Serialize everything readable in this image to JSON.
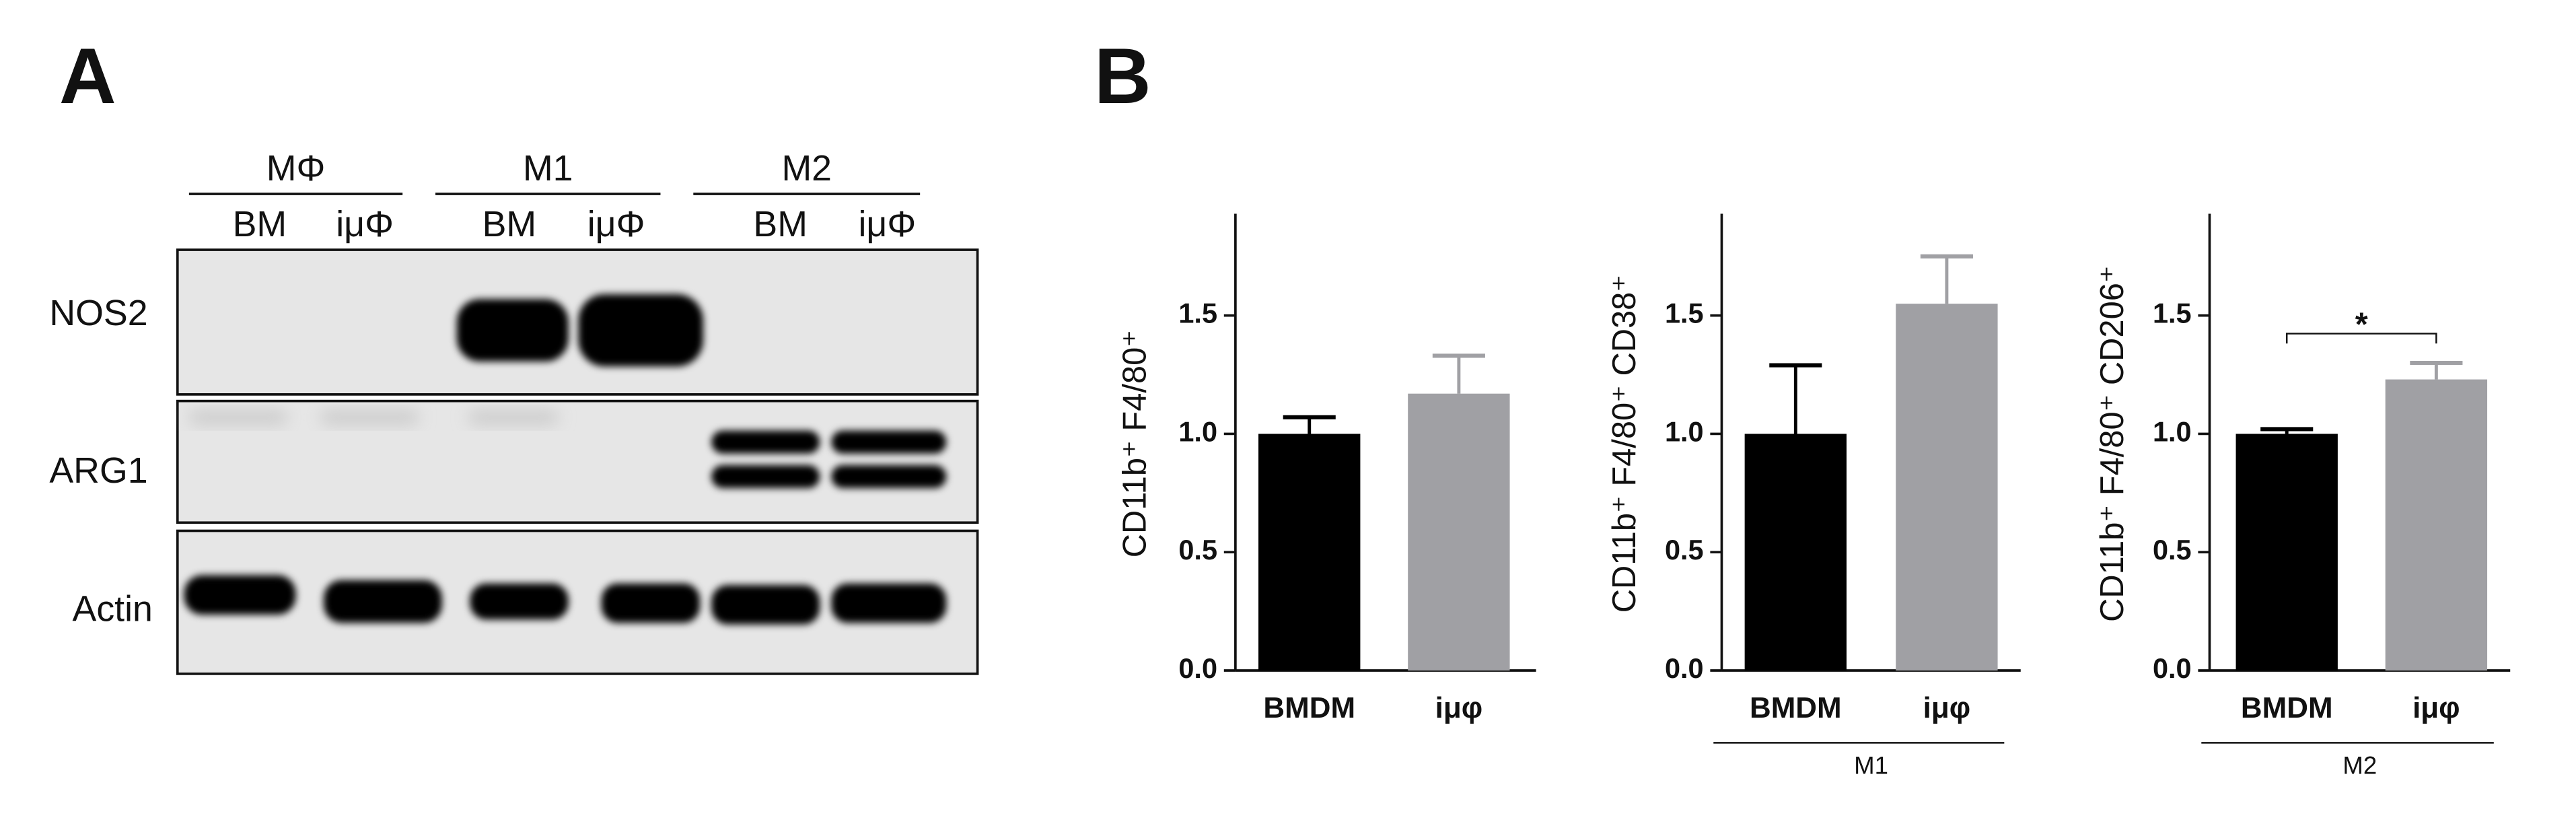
{
  "panel_a": {
    "label": "A",
    "groups": [
      {
        "name": "MΦ",
        "lanes": [
          "BM",
          "iμΦ"
        ]
      },
      {
        "name": "M1",
        "lanes": [
          "BM",
          "iμΦ"
        ]
      },
      {
        "name": "M2",
        "lanes": [
          "BM",
          "iμΦ"
        ]
      }
    ],
    "rows": [
      "NOS2",
      "ARG1",
      "Actin"
    ]
  },
  "panel_b_label": "B",
  "chart_data": [
    {
      "type": "bar",
      "ylabel": "CD11b⁺ F4/80⁺",
      "categories": [
        "BMDM",
        "iμφ"
      ],
      "values": [
        1.0,
        1.17
      ],
      "errors": [
        0.07,
        0.16
      ],
      "colors": [
        "#000000",
        "#a0a0a4"
      ],
      "ylim": [
        0,
        1.93
      ],
      "yticks": [
        {
          "value": 0,
          "label": "0.0"
        },
        0.5,
        {
          "value": 1,
          "label": "1.0"
        },
        1.5
      ]
    },
    {
      "type": "bar",
      "ylabel": "CD11b⁺ F4/80⁺ CD38⁺",
      "categories": [
        "BMDM",
        "iμφ"
      ],
      "values": [
        1.0,
        1.55
      ],
      "errors": [
        0.29,
        0.2
      ],
      "colors": [
        "#000000",
        "#a0a0a4"
      ],
      "ylim": [
        0,
        1.93
      ],
      "yticks": [
        {
          "value": 0,
          "label": "0.0"
        },
        0.5,
        {
          "value": 1,
          "label": "1.0"
        },
        1.5
      ],
      "group_label": "M1"
    },
    {
      "type": "bar",
      "ylabel": "CD11b⁺ F4/80⁺ CD206⁺",
      "categories": [
        "BMDM",
        "iμφ"
      ],
      "values": [
        1.0,
        1.23
      ],
      "errors": [
        0.02,
        0.07
      ],
      "colors": [
        "#000000",
        "#a0a0a4"
      ],
      "ylim": [
        0,
        1.93
      ],
      "yticks": [
        {
          "value": 0,
          "label": "0.0"
        },
        0.5,
        {
          "value": 1,
          "label": "1.0"
        },
        1.5
      ],
      "group_label": "M2",
      "annotation": "*"
    }
  ]
}
